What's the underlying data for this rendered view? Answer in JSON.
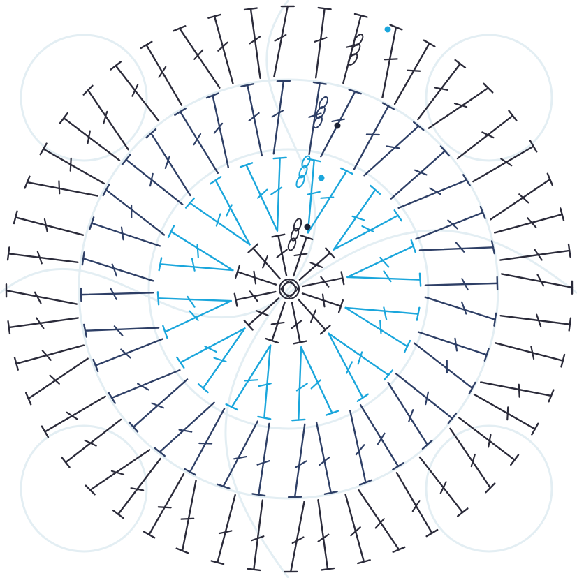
{
  "diagram": {
    "type": "crochet-stitch-chart-round",
    "stitches_per_round": [
      12,
      24,
      36,
      48
    ],
    "rounds": [
      {
        "round": 1,
        "color": "#2b2b3a",
        "pattern": [
          "dc",
          "dc",
          "dc",
          "dc",
          "dc",
          "dc",
          "dc",
          "dc",
          "dc",
          "dc",
          "dc",
          "dc"
        ]
      },
      {
        "round": 2,
        "color": "#1aa6dc",
        "pattern": [
          "inc"
        ]
      },
      {
        "round": 3,
        "color": "#2e3f66",
        "pattern": [
          "dc",
          "inc"
        ]
      },
      {
        "round": 4,
        "color": "#2b2b3a",
        "pattern": [
          "dc",
          "dc",
          "inc"
        ]
      }
    ],
    "start_color": "#2b2b3a",
    "background_pattern_color": "#eef5f8"
  }
}
